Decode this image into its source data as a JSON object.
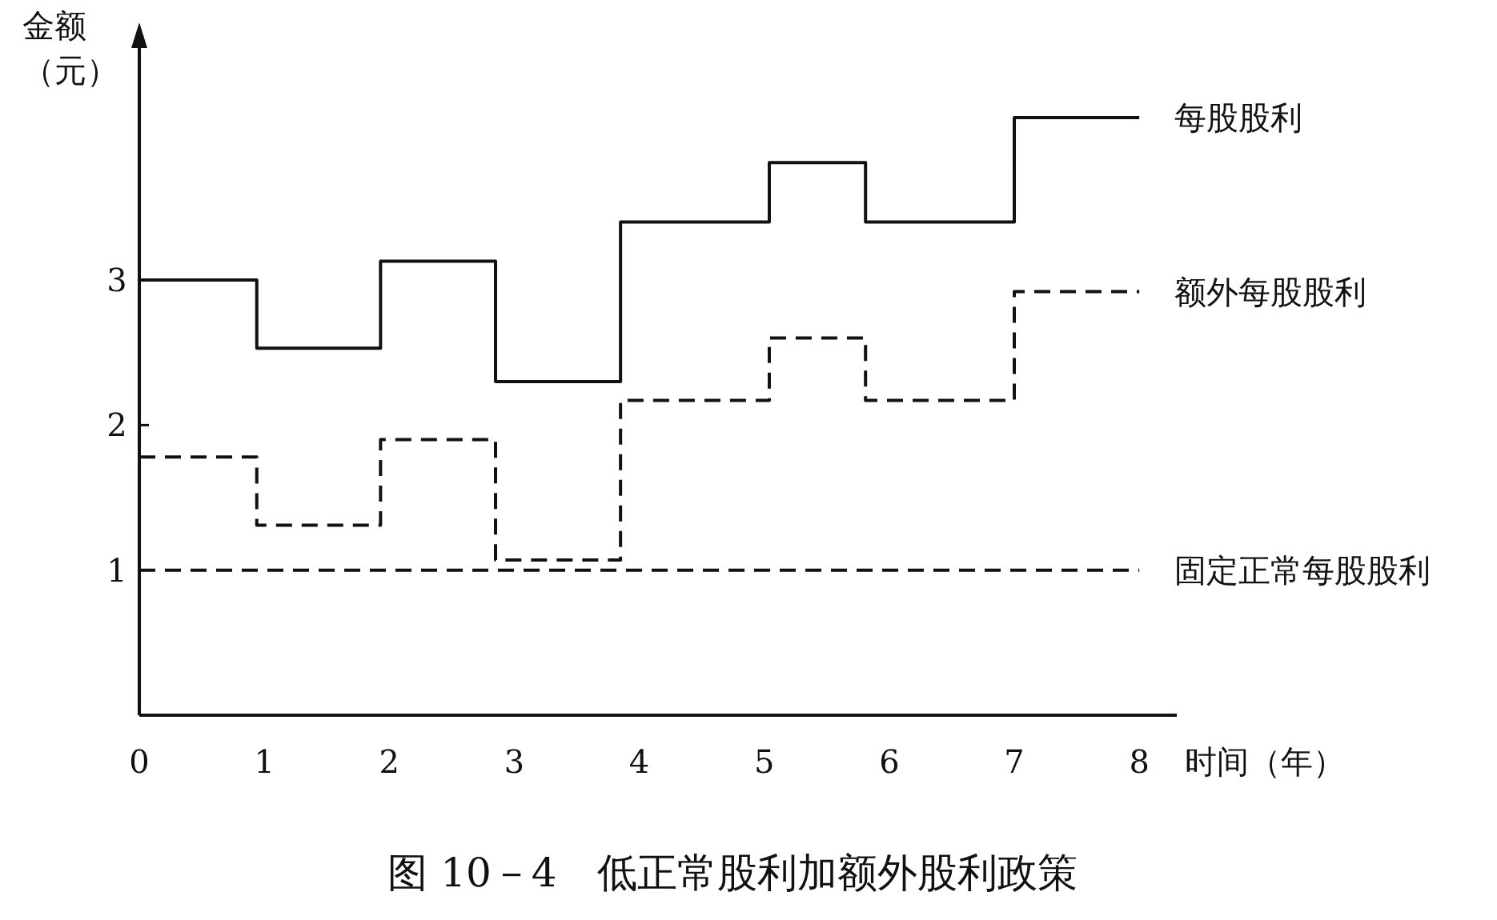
{
  "chart_data": {
    "type": "step",
    "title": "图 10－4　低正常股利加额外股利政策",
    "xlabel": "时间（年）",
    "ylabel": "金额（元）",
    "xlim": [
      0,
      8.3
    ],
    "ylim": [
      0,
      4.6
    ],
    "xticks": [
      0,
      1,
      2,
      3,
      4,
      5,
      6,
      7,
      8
    ],
    "yticks": [
      1,
      2,
      3
    ],
    "grid": false,
    "series": [
      {
        "name": "每股股利",
        "color": "#111111",
        "line_style": "solid",
        "x": [
          0,
          0.94,
          1.93,
          2.85,
          3.85,
          5.04,
          5.81,
          7.0,
          8.0
        ],
        "values": [
          3.0,
          2.53,
          3.13,
          2.3,
          3.4,
          3.81,
          3.4,
          4.12,
          4.12
        ]
      },
      {
        "name": "额外每股股利",
        "color": "#111111",
        "line_style": "dashed",
        "x": [
          0,
          0.94,
          1.93,
          2.85,
          3.85,
          5.04,
          5.81,
          7.0,
          8.0
        ],
        "values": [
          1.78,
          1.31,
          1.9,
          1.07,
          2.17,
          2.6,
          2.17,
          2.92,
          2.92
        ]
      },
      {
        "name": "固定正常每股股利",
        "color": "#111111",
        "line_style": "dashed",
        "x": [
          0,
          8.0
        ],
        "values": [
          1.0,
          1.0
        ]
      }
    ]
  }
}
